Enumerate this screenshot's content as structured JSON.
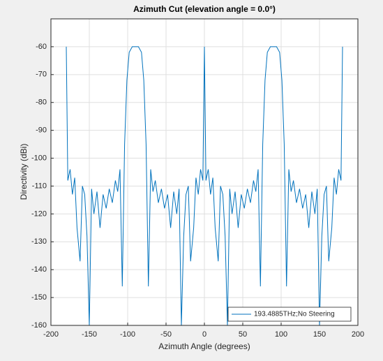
{
  "chart_data": {
    "type": "line",
    "title": "Azimuth Cut (elevation angle = 0.0°)",
    "x_label": "Azimuth Angle (degrees)",
    "y_label": "Directivity (dBi)",
    "x": [
      -180,
      -178,
      -175,
      -172,
      -169,
      -166,
      -162,
      -159,
      -156,
      -153,
      -150,
      -147,
      -144,
      -140,
      -136,
      -132,
      -128,
      -124,
      -120,
      -116,
      -113,
      -110,
      -107,
      -104,
      -101,
      -98,
      -94,
      -90,
      -86,
      -82,
      -79,
      -76,
      -73,
      -70,
      -67,
      -64,
      -60,
      -56,
      -52,
      -48,
      -44,
      -40,
      -36,
      -33,
      -30,
      -27,
      -24,
      -21,
      -18,
      -14,
      -11,
      -8,
      -5,
      -2,
      0,
      2,
      5,
      8,
      11,
      14,
      18,
      21,
      24,
      27,
      30,
      33,
      36,
      40,
      44,
      48,
      52,
      56,
      60,
      64,
      67,
      70,
      73,
      76,
      79,
      82,
      86,
      90,
      94,
      98,
      101,
      104,
      107,
      110,
      113,
      116,
      120,
      124,
      128,
      132,
      136,
      140,
      144,
      147,
      150,
      153,
      156,
      159,
      162,
      166,
      169,
      172,
      175,
      178,
      180
    ],
    "series": [
      {
        "name": "193.4885THz;No Steering",
        "color": "#0072bd",
        "values": [
          -60,
          -108,
          -104,
          -113,
          -107,
          -125,
          -137,
          -110,
          -113,
          -128,
          -160,
          -111,
          -120,
          -112,
          -125,
          -113,
          -118,
          -111,
          -116,
          -108,
          -112,
          -104,
          -146,
          -95,
          -72,
          -62,
          -60,
          -60,
          -60,
          -62,
          -72,
          -95,
          -146,
          -104,
          -112,
          -108,
          -116,
          -111,
          -118,
          -113,
          -125,
          -112,
          -120,
          -111,
          -160,
          -128,
          -113,
          -110,
          -137,
          -125,
          -107,
          -113,
          -104,
          -108,
          -60,
          -108,
          -104,
          -113,
          -107,
          -125,
          -137,
          -110,
          -113,
          -128,
          -160,
          -111,
          -120,
          -112,
          -125,
          -113,
          -118,
          -111,
          -116,
          -108,
          -112,
          -104,
          -146,
          -95,
          -72,
          -62,
          -60,
          -60,
          -60,
          -62,
          -72,
          -95,
          -146,
          -104,
          -112,
          -108,
          -116,
          -111,
          -118,
          -113,
          -125,
          -112,
          -120,
          -111,
          -160,
          -128,
          -113,
          -110,
          -137,
          -125,
          -107,
          -113,
          -104,
          -108,
          -60
        ]
      }
    ],
    "xlim": [
      -200,
      200
    ],
    "xticks": [
      -200,
      -150,
      -100,
      -50,
      0,
      50,
      100,
      150,
      200
    ],
    "ylim": [
      -160,
      -50
    ],
    "yticks": [
      -160,
      -150,
      -140,
      -130,
      -120,
      -110,
      -100,
      -90,
      -80,
      -70,
      -60
    ],
    "grid": true,
    "legend": "lower right"
  }
}
